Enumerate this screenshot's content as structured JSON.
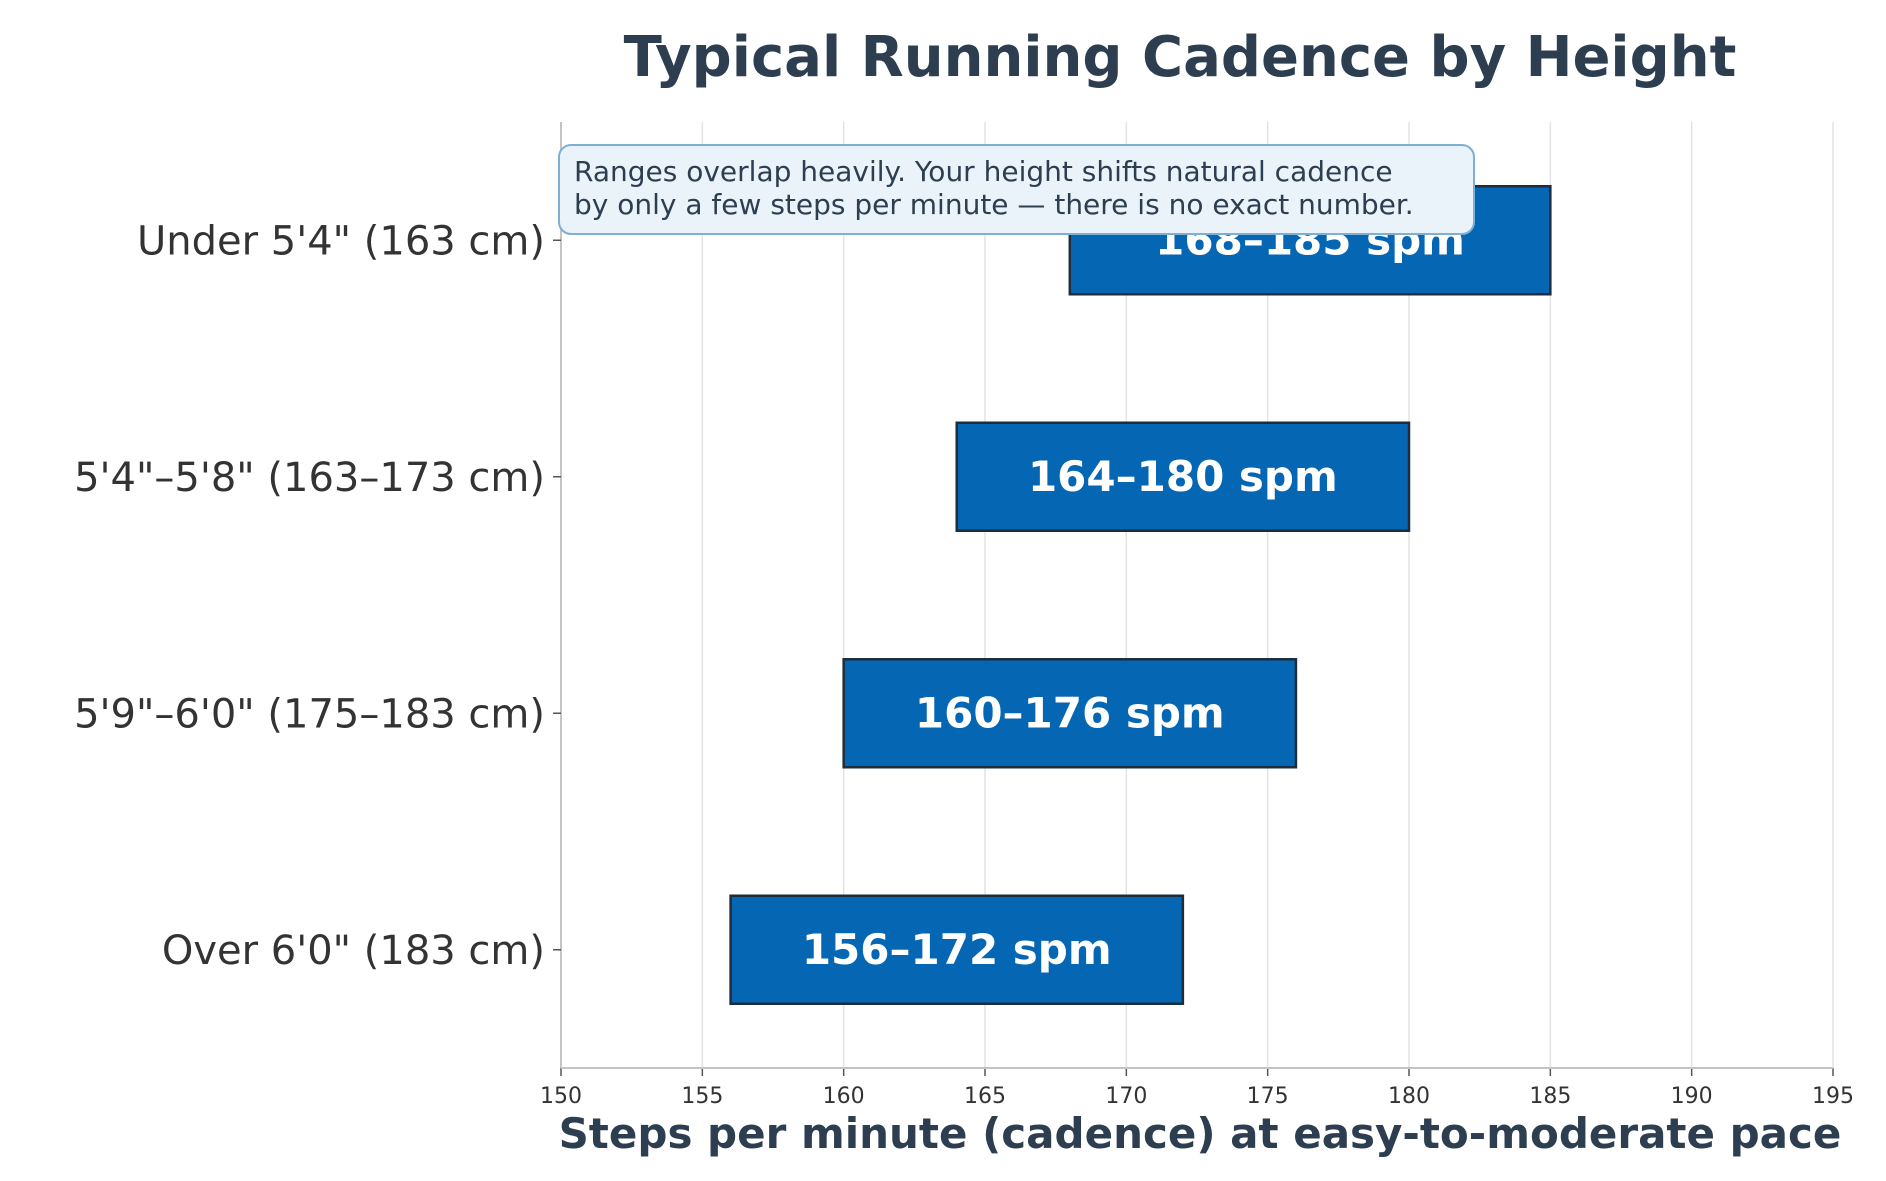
{
  "chart_data": {
    "type": "bar",
    "orientation": "horizontal",
    "subtype": "range",
    "title": "Typical Running Cadence by Height",
    "xlabel": "Steps per minute (cadence) at easy-to-moderate pace",
    "ylabel": "",
    "xlim": [
      150,
      195
    ],
    "x_ticks": [
      "150",
      "155",
      "160",
      "165",
      "170",
      "175",
      "180",
      "185",
      "190",
      "195"
    ],
    "grid": "vertical",
    "categories": [
      "Under 5'4\" (163 cm)",
      "5'4\"–5'8\" (163–173 cm)",
      "5'9\"–6'0\" (175–183 cm)",
      "Over 6'0\" (183 cm)"
    ],
    "ranges": [
      {
        "start": 168,
        "end": 185,
        "label": "168–185 spm"
      },
      {
        "start": 164,
        "end": 180,
        "label": "164–180 spm"
      },
      {
        "start": 160,
        "end": 176,
        "label": "160–176 spm"
      },
      {
        "start": 156,
        "end": 172,
        "label": "156–172 spm"
      }
    ],
    "annotation": {
      "lines": [
        "Ranges overlap heavily. Your height shifts natural cadence",
        "by only a few steps per minute — there is no exact number."
      ],
      "placement": "top-left"
    }
  },
  "colors": {
    "bar_fill": "#0566b3",
    "bar_edge": "#1e2d3b",
    "title": "#2c3e50",
    "note_fill": "#eaf2fa",
    "note_edge": "#7fb0d4"
  }
}
